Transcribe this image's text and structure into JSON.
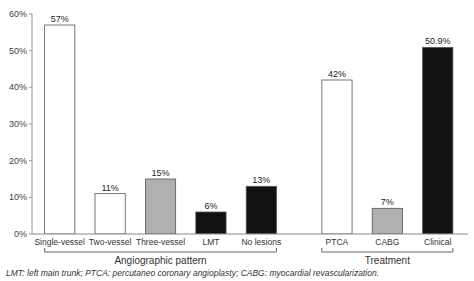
{
  "chart_data": {
    "type": "bar",
    "categories": [
      "Single-vessel",
      "Two-vessel",
      "Three-vessel",
      "LMT",
      "No lesions",
      "PTCA",
      "CABG",
      "Clinical"
    ],
    "values": [
      57,
      11,
      15,
      6,
      13,
      42,
      7,
      50.9
    ],
    "value_labels": [
      "57%",
      "11%",
      "15%",
      "6%",
      "13%",
      "42%",
      "7%",
      "50.9%"
    ],
    "data_labels": true,
    "colors": [
      "#ffffff",
      "#ffffff",
      "#b0b0b0",
      "#111111",
      "#111111",
      "#ffffff",
      "#b0b0b0",
      "#111111"
    ],
    "ylim": [
      0,
      60
    ],
    "yticks": [
      {
        "value": 0,
        "label": "0%"
      },
      {
        "value": 10,
        "label": "10%"
      },
      {
        "value": 20,
        "label": "20%"
      },
      {
        "value": 30,
        "label": "30%"
      },
      {
        "value": 40,
        "label": "40%"
      },
      {
        "value": 50,
        "label": "50%"
      },
      {
        "value": 60,
        "label": "60%"
      }
    ],
    "grid": false,
    "groups": [
      {
        "label": "Angiographic pattern",
        "categories": [
          "Single-vessel",
          "Two-vessel",
          "Three-vessel",
          "LMT",
          "No lesions"
        ]
      },
      {
        "label": "Treatment",
        "categories": [
          "PTCA",
          "CABG",
          "Clinical"
        ]
      }
    ],
    "footnote": "LMT: left main trunk; PTCA: percutaneo coronary angioplasty; CABG: myocardial revascularization."
  }
}
